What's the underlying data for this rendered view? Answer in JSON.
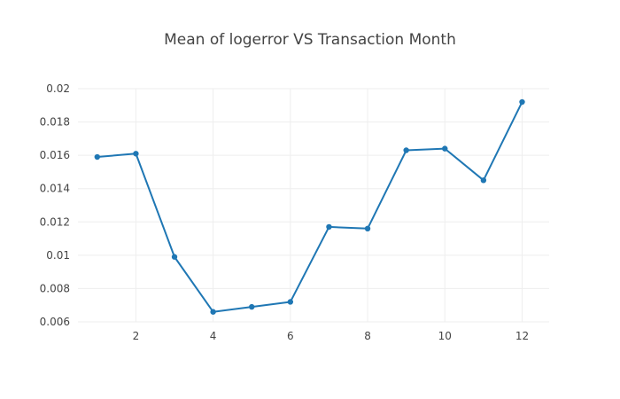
{
  "chart_data": {
    "type": "line",
    "title": "Mean of logerror VS Transaction Month",
    "xlabel": "",
    "ylabel": "",
    "x": [
      1,
      2,
      3,
      4,
      5,
      6,
      7,
      8,
      9,
      10,
      11,
      12
    ],
    "series": [
      {
        "values": [
          0.0159,
          0.0161,
          0.0099,
          0.0066,
          0.0069,
          0.0072,
          0.0117,
          0.0116,
          0.0163,
          0.0164,
          0.0145,
          0.0192
        ]
      }
    ],
    "xlim": [
      0.5,
      12.7
    ],
    "ylim": [
      0.006,
      0.02
    ],
    "xticks": [
      2,
      4,
      6,
      8,
      10,
      12
    ],
    "xtick_labels": [
      "2",
      "4",
      "6",
      "8",
      "10",
      "12"
    ],
    "yticks": [
      0.006,
      0.008,
      0.01,
      0.012,
      0.014,
      0.016,
      0.018,
      0.02
    ],
    "ytick_labels": [
      "0.006",
      "0.008",
      "0.01",
      "0.012",
      "0.014",
      "0.016",
      "0.018",
      "0.02"
    ],
    "grid": true,
    "legend": false,
    "line_color": "#1f77b4",
    "grid_color": "#eeeeee",
    "text_color": "#444444"
  }
}
